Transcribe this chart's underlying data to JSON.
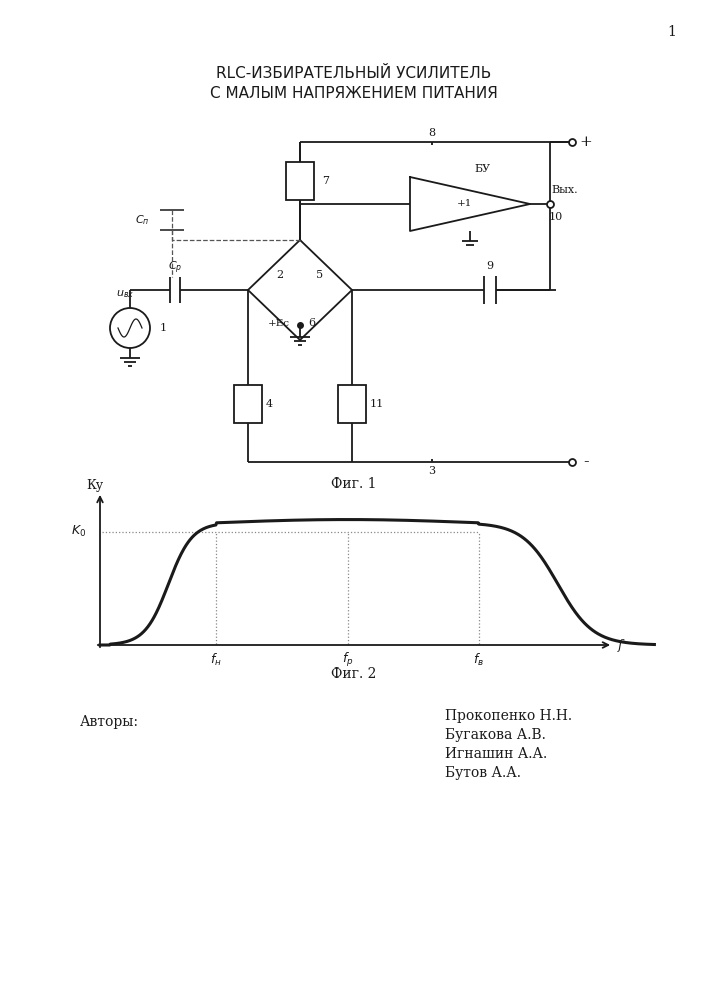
{
  "title_line1": "RLC-ИЗБИРАТЕЛЬНЫЙ УСИЛИТЕЛЬ",
  "title_line2": "С МАЛЫМ НАПРЯЖЕНИЕМ ПИТАНИЯ",
  "fig1_caption": "Фиг. 1",
  "fig2_caption": "Фиг. 2",
  "page_number": "1",
  "authors_label": "Авторы:",
  "authors": [
    "Прокопенко Н.Н.",
    "Бугакова А.В.",
    "Игнашин А.А.",
    "Бутов А.А."
  ],
  "bg_color": "#ffffff",
  "line_color": "#1a1a1a",
  "dot_color": "#888888"
}
